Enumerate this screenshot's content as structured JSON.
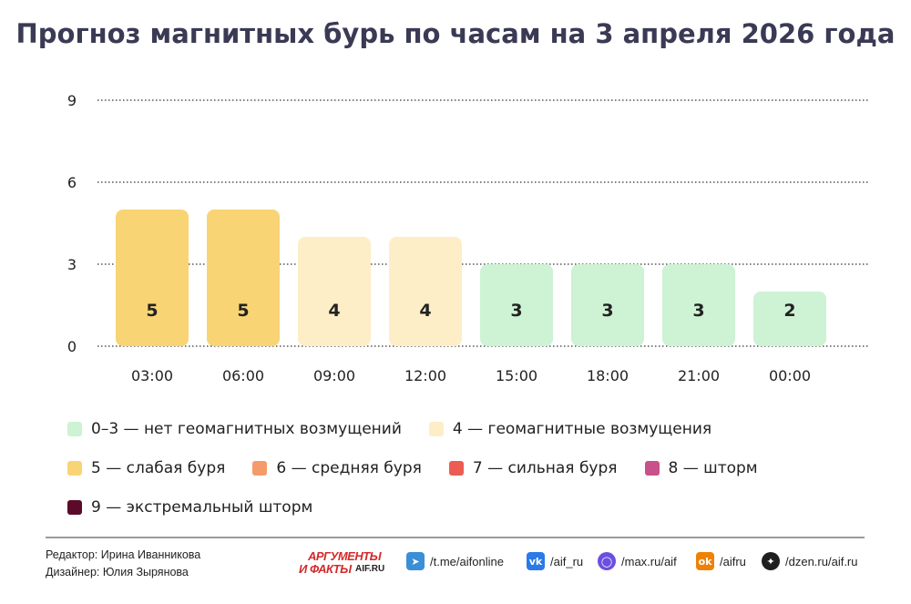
{
  "title": "Прогноз магнитных бурь по часам на 3 апреля 2026 года",
  "chart_data": {
    "type": "bar",
    "categories": [
      "03:00",
      "06:00",
      "09:00",
      "12:00",
      "15:00",
      "18:00",
      "21:00",
      "00:00"
    ],
    "values": [
      5,
      5,
      4,
      4,
      3,
      3,
      3,
      2
    ],
    "ylim": [
      0,
      9
    ],
    "yticks": [
      0,
      3,
      6,
      9
    ],
    "grid": true,
    "xlabel": "",
    "ylabel": "",
    "bar_colors": [
      "#f9d475",
      "#f9d475",
      "#fdeec8",
      "#fdeec8",
      "#cdf2d4",
      "#cdf2d4",
      "#cdf2d4",
      "#cdf2d4"
    ]
  },
  "legend": [
    [
      {
        "label": "0–3 — нет геомагнитных возмущений",
        "color": "#cdf2d4"
      },
      {
        "label": "4 — геомагнитные возмущения",
        "color": "#fdeec8"
      }
    ],
    [
      {
        "label": "5 — слабая буря",
        "color": "#f9d475"
      },
      {
        "label": "6 — средняя буря",
        "color": "#f59a6b"
      },
      {
        "label": "7 — сильная буря",
        "color": "#ec5c52"
      },
      {
        "label": "8 — шторм",
        "color": "#c9508a"
      }
    ],
    [
      {
        "label": "9 — экстремальный шторм",
        "color": "#5c0a2a"
      }
    ]
  ],
  "footer": {
    "editor": "Редактор: Ирина Иванникова",
    "designer": "Дизайнер: Юлия Зырянова",
    "logo_line1": "АРГУМЕНТЫ",
    "logo_line2": "И ФАКТЫ",
    "logo_line3": "AIF.RU",
    "links": [
      {
        "icon": "telegram-icon",
        "text": "/t.me/aifonline",
        "color": "#3a8fd6"
      },
      {
        "icon": "vk-icon",
        "text": "/aif_ru",
        "color": "#2a7ae8"
      },
      {
        "icon": "max-icon",
        "text": "/max.ru/aif",
        "color": "#6b4fe0"
      },
      {
        "icon": "odnoklassniki-icon",
        "text": "/aifru",
        "color": "#ee8208"
      },
      {
        "icon": "dzen-icon",
        "text": "/dzen.ru/aif.ru",
        "color": "#1f1f1f"
      }
    ]
  }
}
